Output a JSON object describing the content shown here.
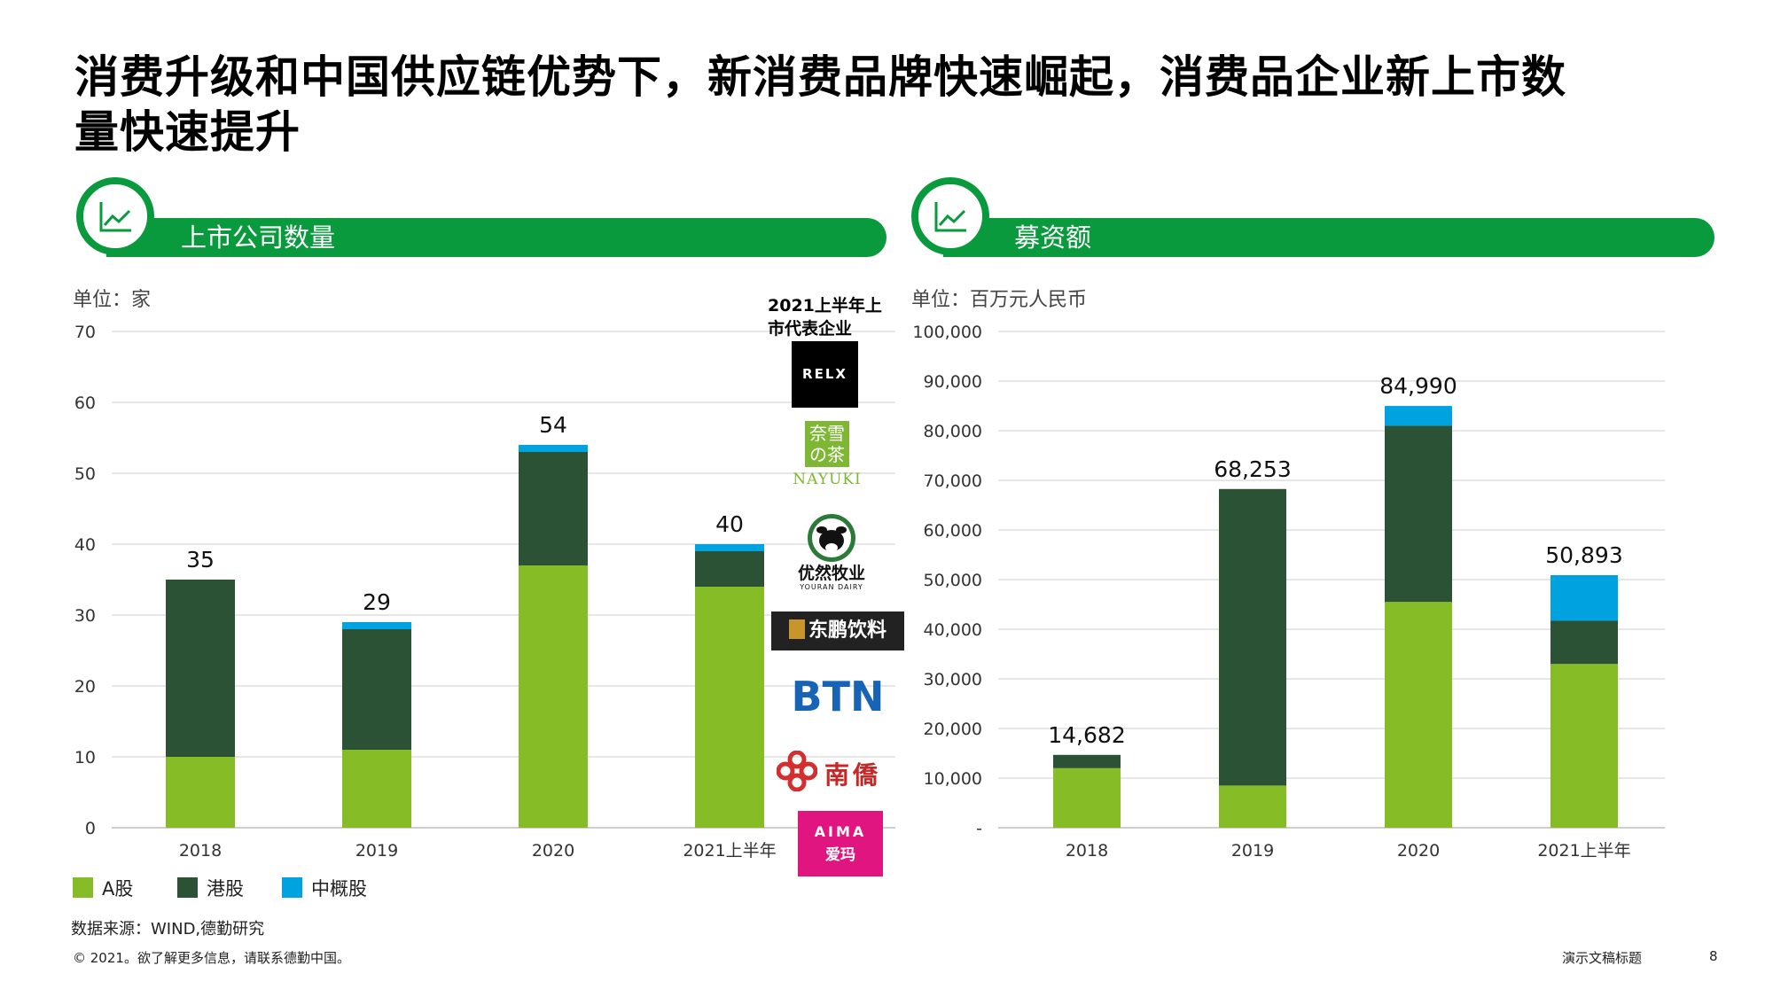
{
  "title": "消费升级和中国供应链优势下，新消费品牌快速崛起，消费品企业新上市数量快速提升",
  "left_panel": {
    "banner": "上市公司数量",
    "unit": "单位：家"
  },
  "right_panel": {
    "banner": "募资额",
    "unit": "单位：百万元人民币"
  },
  "representatives": {
    "title": "2021上半年上市代表企业",
    "logos": {
      "relx": "RELX",
      "nayuki_cn": "奈雪の茶",
      "nayuki_en": "NAYUKI",
      "youran_cn": "优然牧业",
      "youran_en": "YOURAN DAIRY",
      "dongpeng": "东鹏饮料",
      "btn": "BTN",
      "nanqiao": "南僑",
      "aima_en": "AIMA",
      "aima_cn": "爱玛"
    }
  },
  "legend": [
    "A股",
    "港股",
    "中概股"
  ],
  "colors": {
    "a_share": "#86bc25",
    "hk_share": "#2b5234",
    "us_china": "#00a3e0",
    "brand": "#0a9a3e"
  },
  "source": "数据来源：WIND,德勤研究",
  "footer": {
    "copyright": "© 2021。欲了解更多信息，请联系德勤中国。",
    "doc_title": "演示文稿标题",
    "page": "8"
  },
  "chart_data": [
    {
      "type": "bar",
      "stacked": true,
      "categories": [
        "2018",
        "2019",
        "2020",
        "2021上半年"
      ],
      "series": [
        {
          "name": "A股",
          "values": [
            10,
            11,
            37,
            34
          ]
        },
        {
          "name": "港股",
          "values": [
            25,
            17,
            16,
            5
          ]
        },
        {
          "name": "中概股",
          "values": [
            0,
            1,
            1,
            1
          ]
        }
      ],
      "totals": [
        "35",
        "29",
        "54",
        "40"
      ],
      "ylim": [
        0,
        70
      ],
      "yticks": [
        "0",
        "10",
        "20",
        "30",
        "40",
        "50",
        "60",
        "70"
      ],
      "grid": true,
      "legend_position": "bottom-left"
    },
    {
      "type": "bar",
      "stacked": true,
      "categories": [
        "2018",
        "2019",
        "2020",
        "2021上半年"
      ],
      "series": [
        {
          "name": "A股",
          "values": [
            12000,
            8500,
            45500,
            33000
          ]
        },
        {
          "name": "港股",
          "values": [
            2682,
            59753,
            35500,
            8700
          ]
        },
        {
          "name": "中概股",
          "values": [
            0,
            0,
            3990,
            9193
          ]
        }
      ],
      "totals": [
        "14,682",
        "68,253",
        "84,990",
        "50,893"
      ],
      "ylim": [
        0,
        100000
      ],
      "yticks": [
        "-",
        "10,000",
        "20,000",
        "30,000",
        "40,000",
        "50,000",
        "60,000",
        "70,000",
        "80,000",
        "90,000",
        "100,000"
      ],
      "grid": true
    }
  ]
}
